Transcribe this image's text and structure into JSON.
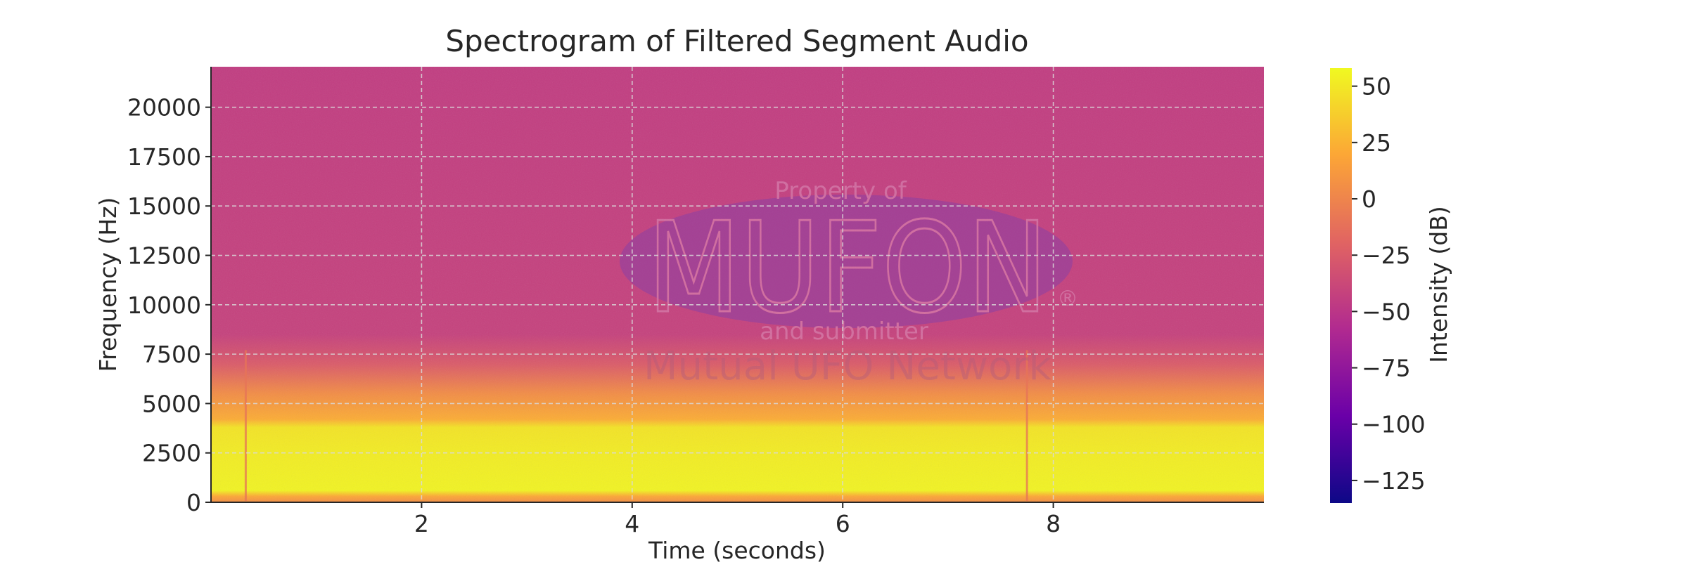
{
  "chart_data": {
    "type": "heatmap",
    "title": "Spectrogram of Filtered Segment Audio",
    "xlabel": "Time (seconds)",
    "ylabel": "Frequency (Hz)",
    "xlim": [
      0,
      10
    ],
    "ylim": [
      0,
      22050
    ],
    "x_ticks": [
      2,
      4,
      6,
      8
    ],
    "y_ticks": [
      0,
      2500,
      5000,
      7500,
      10000,
      12500,
      15000,
      17500,
      20000
    ],
    "grid": true,
    "colormap": "plasma",
    "colormap_stops": [
      "#0d0887",
      "#6a00a8",
      "#b12a90",
      "#e16462",
      "#fca636",
      "#f0f921"
    ],
    "colorbar": {
      "label": "Intensity (dB)",
      "range": [
        -135,
        58
      ],
      "ticks": [
        50,
        25,
        0,
        -25,
        -50,
        -75,
        -100,
        -125
      ]
    },
    "intensity_profile_db": [
      {
        "freq_hz": 0,
        "db": 5
      },
      {
        "freq_hz": 300,
        "db": 20
      },
      {
        "freq_hz": 600,
        "db": 55
      },
      {
        "freq_hz": 2500,
        "db": 52
      },
      {
        "freq_hz": 3800,
        "db": 48
      },
      {
        "freq_hz": 4200,
        "db": 22
      },
      {
        "freq_hz": 5500,
        "db": 5
      },
      {
        "freq_hz": 7000,
        "db": -25
      },
      {
        "freq_hz": 8500,
        "db": -42
      },
      {
        "freq_hz": 22050,
        "db": -45
      }
    ],
    "transients": [
      {
        "time_s": 0.33,
        "max_freq_hz": 7700
      },
      {
        "time_s": 7.75,
        "max_freq_hz": 7700
      }
    ]
  },
  "watermark": {
    "line1": "Property of",
    "logo_text": "MUFON",
    "registered_mark": "®",
    "line3": "and submitter",
    "line4": "Mutual UFO Network"
  }
}
